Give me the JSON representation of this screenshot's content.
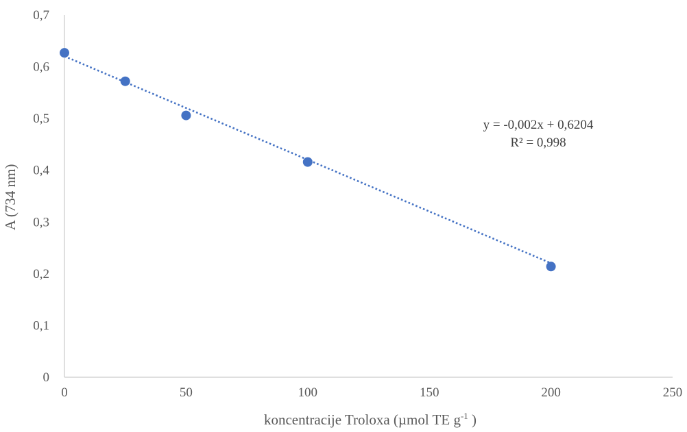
{
  "chart_data": {
    "type": "scatter",
    "x": [
      0,
      25,
      50,
      100,
      200
    ],
    "y": [
      0.627,
      0.572,
      0.506,
      0.416,
      0.214
    ],
    "xlim": [
      0,
      250
    ],
    "ylim": [
      0,
      0.7
    ],
    "xticks": [
      "0",
      "50",
      "100",
      "150",
      "200",
      "250"
    ],
    "yticks": [
      "0",
      "0,1",
      "0,2",
      "0,3",
      "0,4",
      "0,5",
      "0,6",
      "0,7"
    ],
    "xlabel": "koncentracije Troloxa (µmol TE g",
    "xlabel_sup": "-1",
    "xlabel_end": " )",
    "ylabel": "A (734 nm)",
    "trendline": {
      "slope": -0.002,
      "intercept": 0.6204,
      "x_range": [
        0,
        200
      ],
      "style": "dotted",
      "equation": "y = -0,002x + 0,6204",
      "r_squared": "R² = 0,998"
    },
    "grid": false,
    "legend": "none",
    "colors": {
      "points": "#4472C4",
      "trendline": "#4472C4",
      "axis": "#bfbfbf"
    }
  }
}
